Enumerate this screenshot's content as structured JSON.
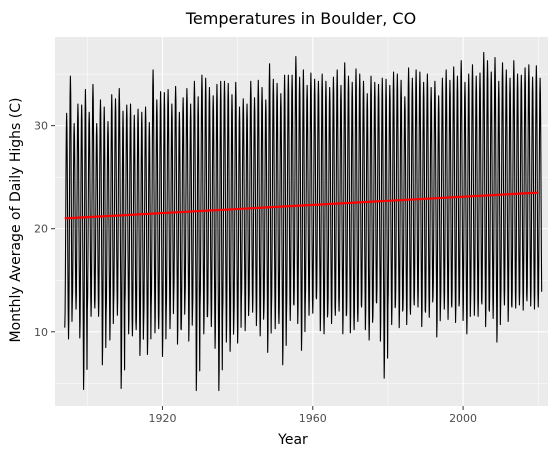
{
  "chart_data": {
    "type": "line",
    "title": "Temperatures in Boulder, CO",
    "xlabel": "Year",
    "ylabel": "Monthly Average of Daily Highs (C)",
    "xlim": [
      1891.4,
      2022.6
    ],
    "ylim": [
      2.8,
      38.6
    ],
    "x_ticks": [
      1920,
      1960,
      2000
    ],
    "y_ticks": [
      10,
      20,
      30
    ],
    "x_tick_labels": [
      "1920",
      "1960",
      "2000"
    ],
    "y_tick_labels": [
      "10",
      "20",
      "30"
    ],
    "grid": true,
    "panel_background": "#ebebeb",
    "grid_major_color": "#ffffff",
    "series": [
      {
        "style": "black-line",
        "color": "#000000",
        "x_start": 1894,
        "x_end": 2020,
        "points_per_year": 12,
        "annual_high_c": [
          31.2,
          34.8,
          30.2,
          32.1,
          32.0,
          33.5,
          31.3,
          34.0,
          30.2,
          32.5,
          31.8,
          30.4,
          33.0,
          32.6,
          33.6,
          31.4,
          32.0,
          32.1,
          31.0,
          31.6,
          31.3,
          31.8,
          30.3,
          35.4,
          32.5,
          33.3,
          33.2,
          33.5,
          32.1,
          33.8,
          31.3,
          32.7,
          33.6,
          32.1,
          34.3,
          32.8,
          34.9,
          34.6,
          33.7,
          32.9,
          34.0,
          34.3,
          34.3,
          34.1,
          33.0,
          34.2,
          31.8,
          32.6,
          32.1,
          34.3,
          32.7,
          34.4,
          33.7,
          32.5,
          36.0,
          34.5,
          34.1,
          33.1,
          34.9,
          34.9,
          34.9,
          36.7,
          34.7,
          35.4,
          33.9,
          35.1,
          34.5,
          34.3,
          35.0,
          34.3,
          33.7,
          34.7,
          35.4,
          33.9,
          36.1,
          34.8,
          34.2,
          35.5,
          35.0,
          34.3,
          33.1,
          34.8,
          34.2,
          34.0,
          34.6,
          34.5,
          33.9,
          35.2,
          35.0,
          34.4,
          32.8,
          35.6,
          34.6,
          35.4,
          35.2,
          34.2,
          35.0,
          33.7,
          34.3,
          32.9,
          34.6,
          35.4,
          34.4,
          35.7,
          34.8,
          36.3,
          34.2,
          35.0,
          35.9,
          34.8,
          35.1,
          37.1,
          36.3,
          35.2,
          36.6,
          34.3,
          36.1,
          35.4,
          34.6,
          36.3,
          35.0,
          34.9,
          35.6,
          35.9,
          34.7,
          35.8,
          34.6
        ],
        "annual_low_c": [
          10.4,
          9.3,
          12.7,
          12.2,
          9.4,
          4.4,
          12.1,
          11.5,
          12.3,
          11.5,
          6.8,
          11.7,
          9.2,
          12.6,
          11.6,
          4.5,
          12.6,
          9.8,
          9.6,
          10.2,
          7.7,
          10.9,
          7.8,
          12.4,
          9.9,
          10.3,
          7.6,
          11.9,
          10.3,
          13.4,
          8.8,
          10.2,
          13.1,
          9.1,
          11.8,
          4.3,
          12.4,
          9.8,
          11.5,
          10.5,
          8.4,
          4.3,
          11.5,
          9.0,
          8.1,
          10.9,
          8.9,
          12.9,
          10.1,
          12.4,
          11.9,
          10.6,
          9.6,
          12.0,
          8.0,
          12.1,
          10.3,
          10.8,
          6.8,
          11.5,
          11.1,
          12.6,
          10.8,
          8.2,
          12.7,
          11.6,
          11.8,
          13.2,
          10.1,
          9.8,
          11.8,
          10.8,
          11.6,
          12.0,
          9.8,
          11.7,
          9.9,
          10.2,
          11.0,
          12.4,
          10.2,
          9.2,
          11.4,
          12.8,
          9.1,
          5.5,
          12.4,
          10.7,
          12.6,
          10.4,
          12.2,
          10.7,
          11.7,
          12.6,
          12.4,
          10.5,
          11.9,
          11.4,
          13.4,
          9.5,
          12.5,
          12.2,
          11.2,
          12.4,
          10.9,
          12.8,
          11.1,
          9.8,
          12.8,
          11.6,
          11.5,
          12.7,
          10.5,
          12.0,
          11.3,
          9.0,
          12.4,
          12.6,
          11.0,
          12.4,
          12.3,
          12.6,
          12.1,
          13.0,
          12.5,
          12.2,
          12.4
        ]
      },
      {
        "style": "trend-line",
        "color": "#ff0000",
        "x": [
          1894,
          2020
        ],
        "y": [
          21.0,
          23.5
        ]
      }
    ]
  }
}
